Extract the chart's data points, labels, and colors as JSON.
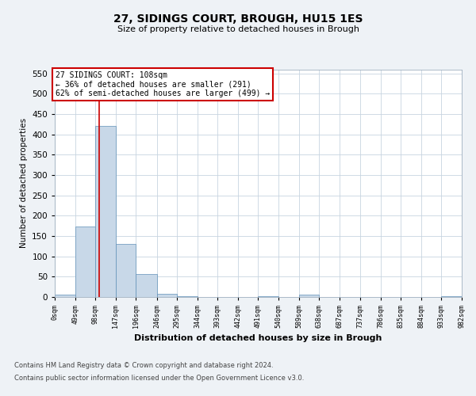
{
  "title1": "27, SIDINGS COURT, BROUGH, HU15 1ES",
  "title2": "Size of property relative to detached houses in Brough",
  "xlabel": "Distribution of detached houses by size in Brough",
  "ylabel": "Number of detached properties",
  "footer1": "Contains HM Land Registry data © Crown copyright and database right 2024.",
  "footer2": "Contains public sector information licensed under the Open Government Licence v3.0.",
  "annotation_line1": "27 SIDINGS COURT: 108sqm",
  "annotation_line2": "← 36% of detached houses are smaller (291)",
  "annotation_line3": "62% of semi-detached houses are larger (499) →",
  "bar_edges": [
    0,
    49,
    98,
    147,
    196,
    246,
    295,
    344,
    393,
    442,
    491,
    540,
    589,
    638,
    687,
    737,
    786,
    835,
    884,
    933,
    982
  ],
  "bar_labels": [
    "0sqm",
    "49sqm",
    "98sqm",
    "147sqm",
    "196sqm",
    "246sqm",
    "295sqm",
    "344sqm",
    "393sqm",
    "442sqm",
    "491sqm",
    "540sqm",
    "589sqm",
    "638sqm",
    "687sqm",
    "737sqm",
    "786sqm",
    "835sqm",
    "884sqm",
    "933sqm",
    "982sqm"
  ],
  "bar_heights": [
    5,
    173,
    420,
    131,
    57,
    8,
    2,
    0,
    0,
    0,
    2,
    0,
    5,
    0,
    0,
    0,
    0,
    0,
    0,
    2
  ],
  "bar_color": "#c8d8e8",
  "bar_edge_color": "#6090b8",
  "vline_x": 108,
  "vline_color": "#cc0000",
  "ylim": [
    0,
    560
  ],
  "yticks": [
    0,
    50,
    100,
    150,
    200,
    250,
    300,
    350,
    400,
    450,
    500,
    550
  ],
  "bg_color": "#eef2f6",
  "plot_bg": "#ffffff",
  "grid_color": "#c8d4e0",
  "annot_box_color": "#ffffff",
  "annot_border_color": "#cc0000"
}
